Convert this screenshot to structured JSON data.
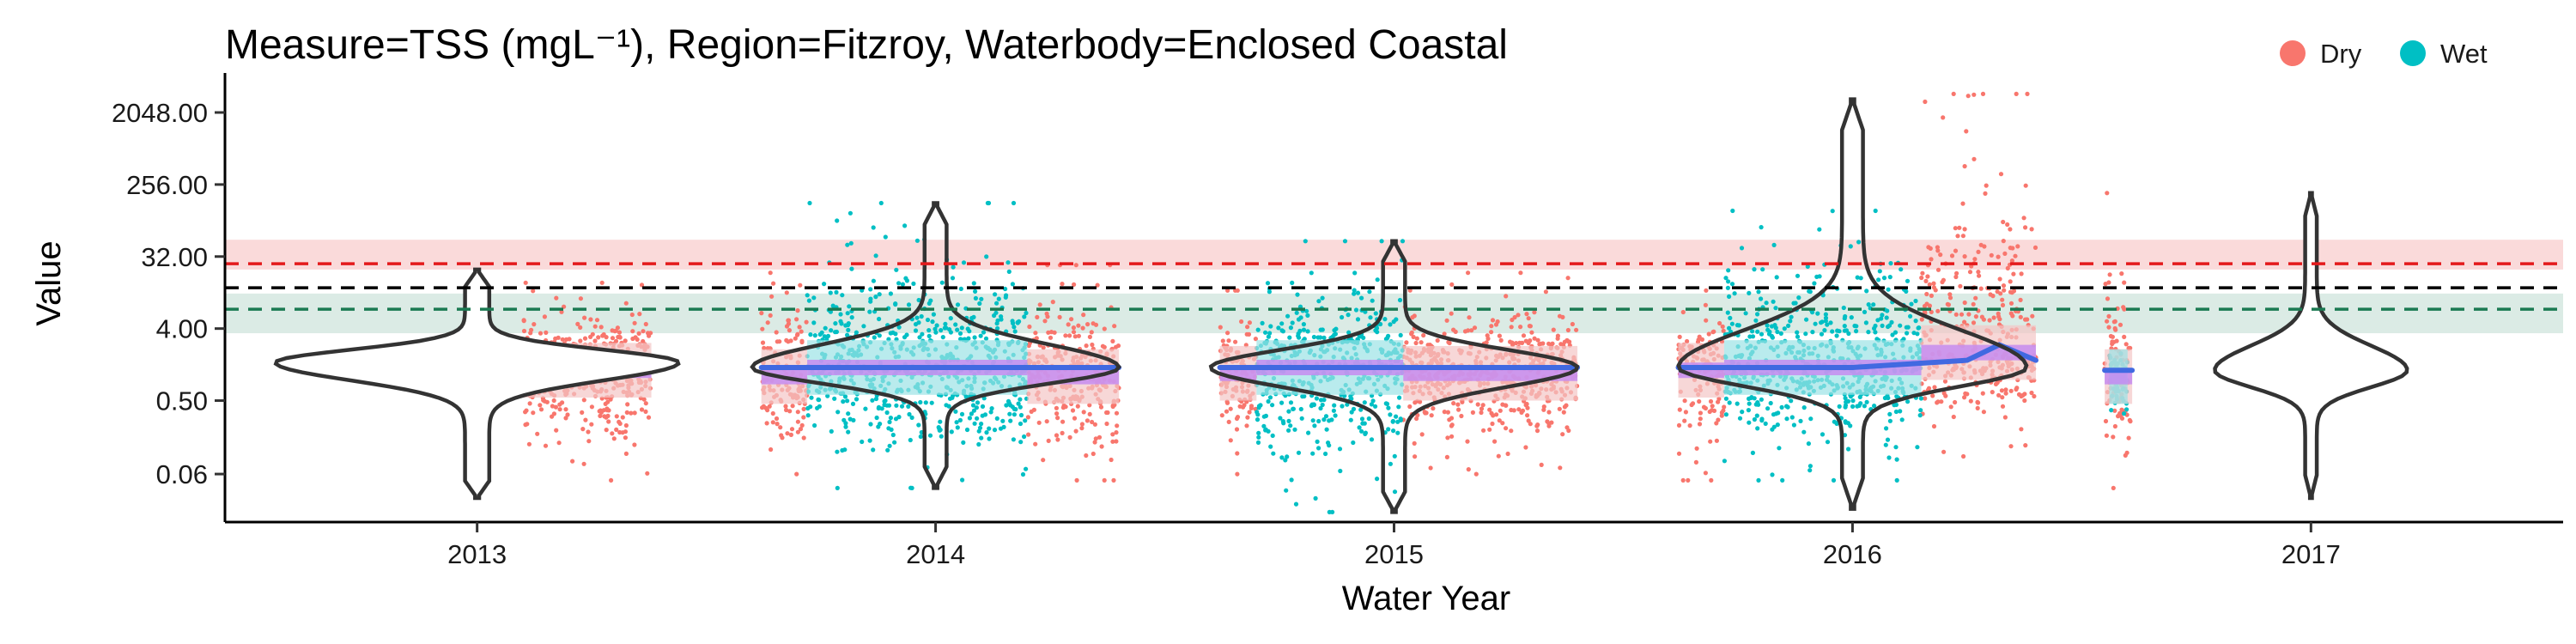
{
  "chart_data": {
    "type": "scatter",
    "title": "Measure=TSS (mgL⁻¹), Region=Fitzroy, Waterbody=Enclosed Coastal",
    "xlabel": "Water Year",
    "ylabel": "Value",
    "y_scale": "log2",
    "ylim": [
      0.015,
      5000
    ],
    "xlim": [
      2012.45,
      2017.55
    ],
    "y_ticks": [
      0.06,
      0.5,
      4.0,
      32.0,
      256.0,
      2048.0
    ],
    "y_tick_labels": [
      "0.06",
      "0.50",
      "4.00",
      "32.00",
      "256.00",
      "2048.00"
    ],
    "x_ticks": [
      2013,
      2014,
      2015,
      2016,
      2017
    ],
    "x_tick_labels": [
      "2013",
      "2014",
      "2015",
      "2016",
      "2017"
    ],
    "grid": false,
    "legend": {
      "position": "top-right",
      "items": [
        {
          "name": "Dry",
          "color": "#F8766D"
        },
        {
          "name": "Wet",
          "color": "#00BFC4"
        }
      ]
    },
    "reference_lines": [
      {
        "value": 26,
        "color": "#E41A1C",
        "style": "dashed",
        "band": [
          22,
          52
        ],
        "band_color": "#F9D3D4"
      },
      {
        "value": 13,
        "color": "#000000",
        "style": "dashed"
      },
      {
        "value": 7,
        "color": "#1B7A52",
        "style": "dashed",
        "band": [
          3.5,
          11
        ],
        "band_color": "#D5E8E0"
      }
    ],
    "violins": [
      {
        "x": 2013,
        "median": 1.5,
        "min": 0.03,
        "max": 22,
        "width": 0.44
      },
      {
        "x": 2014,
        "median": 1.3,
        "min": 0.04,
        "max": 150,
        "width": 0.4
      },
      {
        "x": 2015,
        "median": 1.3,
        "min": 0.02,
        "max": 50,
        "width": 0.4
      },
      {
        "x": 2016,
        "median": 1.3,
        "min": 0.022,
        "max": 3000,
        "width": 0.38
      },
      {
        "x": 2017,
        "median": 1.2,
        "min": 0.03,
        "max": 200,
        "width": 0.21
      }
    ],
    "series": [
      {
        "name": "Dry",
        "color": "#F8766D",
        "segments": [
          {
            "x_range": [
              2013.1,
              2013.38
            ],
            "median": 1.2,
            "min": 0.05,
            "max": 15
          },
          {
            "x_range": [
              2013.62,
              2013.72
            ],
            "median": 1.0,
            "min": 0.06,
            "max": 20
          },
          {
            "x_range": [
              2014.2,
              2014.4
            ],
            "median": 1.0,
            "min": 0.05,
            "max": 25
          },
          {
            "x_range": [
              2014.62,
              2014.7
            ],
            "median": 1.1,
            "min": 0.06,
            "max": 12
          },
          {
            "x_range": [
              2015.02,
              2015.4
            ],
            "median": 1.1,
            "min": 0.06,
            "max": 20
          },
          {
            "x_range": [
              2015.62,
              2015.72
            ],
            "median": 1.2,
            "min": 0.05,
            "max": 12
          },
          {
            "x_range": [
              2016.15,
              2016.4
            ],
            "median": 2.0,
            "min": 0.1,
            "max": 3500
          },
          {
            "x_range": [
              2016.55,
              2016.61
            ],
            "median": 1.0,
            "min": 0.04,
            "max": 200
          }
        ]
      },
      {
        "name": "Wet",
        "color": "#00BFC4",
        "segments": [
          {
            "x_range": [
              2013.72,
              2014.2
            ],
            "median": 1.3,
            "min": 0.04,
            "max": 150
          },
          {
            "x_range": [
              2014.7,
              2015.02
            ],
            "median": 1.3,
            "min": 0.02,
            "max": 50
          },
          {
            "x_range": [
              2015.72,
              2016.15
            ],
            "median": 1.3,
            "min": 0.05,
            "max": 120
          },
          {
            "x_range": [
              2016.56,
              2016.6
            ],
            "median": 1.0,
            "min": 0.2,
            "max": 3
          }
        ]
      }
    ],
    "trend_lines": [
      {
        "color": "#4169E1",
        "x": [
          2013.1,
          2013.2,
          2013.3,
          2013.38
        ],
        "y": [
          1.3,
          1.3,
          1.4,
          1.6
        ]
      },
      {
        "color": "#4169E1",
        "x": [
          2013.62,
          2014.0,
          2014.4
        ],
        "y": [
          1.3,
          1.3,
          1.3
        ]
      },
      {
        "color": "#4169E1",
        "x": [
          2014.62,
          2015.0,
          2015.4
        ],
        "y": [
          1.3,
          1.3,
          1.3
        ]
      },
      {
        "color": "#4169E1",
        "x": [
          2015.62,
          2016.0,
          2016.25,
          2016.32,
          2016.4
        ],
        "y": [
          1.3,
          1.3,
          1.6,
          2.5,
          1.6
        ]
      },
      {
        "color": "#4169E1",
        "x": [
          2016.55,
          2016.61
        ],
        "y": [
          1.2,
          1.2
        ]
      }
    ]
  }
}
